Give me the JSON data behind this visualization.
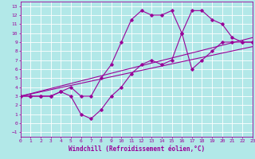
{
  "xlabel": "Windchill (Refroidissement éolien,°C)",
  "xlim": [
    0,
    23
  ],
  "ylim": [
    -1.5,
    13.5
  ],
  "xticks": [
    0,
    1,
    2,
    3,
    4,
    5,
    6,
    7,
    8,
    9,
    10,
    11,
    12,
    13,
    14,
    15,
    16,
    17,
    18,
    19,
    20,
    21,
    22,
    23
  ],
  "yticks": [
    -1,
    0,
    1,
    2,
    3,
    4,
    5,
    6,
    7,
    8,
    9,
    10,
    11,
    12,
    13
  ],
  "background_color": "#b2e8e8",
  "grid_color": "#ffffff",
  "line_color": "#990099",
  "line1_x": [
    0,
    1,
    2,
    3,
    4,
    5,
    6,
    7,
    8,
    9,
    10,
    11,
    12,
    13,
    14,
    15,
    16,
    17,
    18,
    19,
    20,
    21,
    22,
    23
  ],
  "line1_y": [
    3,
    3,
    3,
    3,
    3.5,
    4,
    3,
    3,
    5,
    6.5,
    9,
    11.5,
    12.5,
    12,
    12,
    12.5,
    10,
    12.5,
    12.5,
    11.5,
    11,
    9.5,
    9,
    9
  ],
  "line2_x": [
    0,
    1,
    2,
    3,
    4,
    5,
    6,
    7,
    8,
    9,
    10,
    11,
    12,
    13,
    14,
    15,
    16,
    17,
    18,
    19,
    20,
    21,
    22,
    23
  ],
  "line2_y": [
    3,
    3,
    3,
    3,
    3.5,
    3,
    1,
    0.5,
    1.5,
    3,
    4,
    5.5,
    6.5,
    7,
    6.5,
    7,
    10,
    6,
    7,
    8,
    9,
    9,
    9,
    9
  ],
  "line3_x": [
    0,
    23
  ],
  "line3_y": [
    3.0,
    9.5
  ],
  "line4_x": [
    0,
    23
  ],
  "line4_y": [
    3.0,
    8.5
  ],
  "marker_size": 1.8,
  "line_width": 0.8,
  "tick_fontsize": 4.5,
  "xlabel_fontsize": 5.5
}
